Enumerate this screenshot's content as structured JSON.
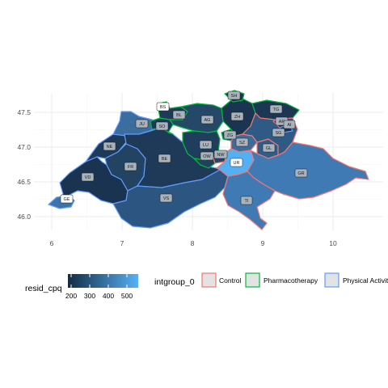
{
  "axes": {
    "x_ticks": [
      "6",
      "7",
      "8",
      "9",
      "10"
    ],
    "y_ticks": [
      "47.5",
      "47.0",
      "46.5",
      "46.0"
    ]
  },
  "colors": {
    "low": "#132B43",
    "high": "#56B1F7",
    "control": "#F8766D",
    "pharmacotherapy": "#00BA38",
    "physical_activity": "#619CFF",
    "grid": "#ebebeb"
  },
  "legend": {
    "fill": {
      "title": "resid_cpq",
      "ticks": [
        "200",
        "300",
        "400",
        "500"
      ]
    },
    "group": {
      "title": "intgroup_0",
      "items": [
        {
          "label": "Control",
          "key": "control"
        },
        {
          "label": "Pharmacotherapy",
          "key": "pharmacotherapy"
        },
        {
          "label": "Physical Activity",
          "key": "physical_activity"
        }
      ]
    }
  },
  "cantons": [
    {
      "abbr": "SH",
      "fill": "#1a3550"
    },
    {
      "abbr": "BS",
      "fill": "#2a4f75"
    },
    {
      "abbr": "BL",
      "fill": "#1e3a58"
    },
    {
      "abbr": "TG",
      "fill": "#1c3654"
    },
    {
      "abbr": "JU",
      "fill": "#3b6e9f"
    },
    {
      "abbr": "SO",
      "fill": "#1d3856"
    },
    {
      "abbr": "AG",
      "fill": "#254768"
    },
    {
      "abbr": "ZH",
      "fill": "#1b3452"
    },
    {
      "abbr": "AR",
      "fill": "#1a3350"
    },
    {
      "abbr": "AI",
      "fill": "#1a3350"
    },
    {
      "abbr": "SG",
      "fill": "#2f5a86"
    },
    {
      "abbr": "NE",
      "fill": "#1e3a59"
    },
    {
      "abbr": "ZG",
      "fill": "#214264"
    },
    {
      "abbr": "LU",
      "fill": "#1f3d5d"
    },
    {
      "abbr": "SZ",
      "fill": "#3a6d9e"
    },
    {
      "abbr": "GL",
      "fill": "#2f5c88"
    },
    {
      "abbr": "OW",
      "fill": "#21415f"
    },
    {
      "abbr": "NW",
      "fill": "#234566"
    },
    {
      "abbr": "BE",
      "fill": "#1e3a58"
    },
    {
      "abbr": "FR",
      "fill": "#234363"
    },
    {
      "abbr": "VD",
      "fill": "#1a3350"
    },
    {
      "abbr": "UR",
      "fill": "#55aff4"
    },
    {
      "abbr": "GR",
      "fill": "#3f7ab5"
    },
    {
      "abbr": "TI",
      "fill": "#3f7ab5"
    },
    {
      "abbr": "VS",
      "fill": "#2c5581"
    },
    {
      "abbr": "GE",
      "fill": "#3d73a9"
    }
  ]
}
